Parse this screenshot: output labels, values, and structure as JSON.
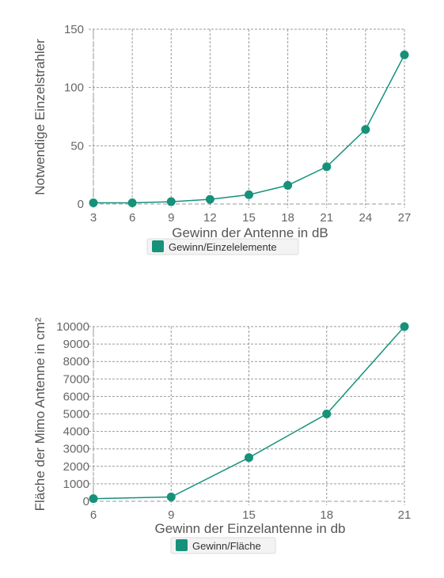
{
  "chart_data": [
    {
      "type": "line",
      "xlabel": "Gewinn der Antenne in dB",
      "ylabel": "Notwendige Einzelstrahler",
      "x": [
        3,
        6,
        9,
        12,
        15,
        18,
        21,
        24,
        27
      ],
      "xlim": [
        3,
        27
      ],
      "ylim": [
        0,
        150
      ],
      "y_ticks": [
        0,
        50,
        100,
        150
      ],
      "series": [
        {
          "name": "Gewinn/Einzelelemente",
          "values": [
            1,
            1,
            2,
            4,
            8,
            16,
            32,
            64,
            128
          ]
        }
      ],
      "grid": true,
      "legend": "bottom",
      "color": "#16917a"
    },
    {
      "type": "line",
      "xlabel": "Gewinn der Einzelantenne in db",
      "ylabel": "Fläche der Mimo Antenne in cm²",
      "x": [
        6,
        9,
        15,
        18,
        21
      ],
      "x_categorical": true,
      "ylim": [
        0,
        10000
      ],
      "y_ticks": [
        0,
        1000,
        2000,
        3000,
        4000,
        5000,
        6000,
        7000,
        8000,
        9000,
        10000
      ],
      "series": [
        {
          "name": "Gewinn/Fläche",
          "values": [
            150,
            250,
            2500,
            5000,
            10000
          ]
        }
      ],
      "grid": true,
      "legend": "bottom",
      "color": "#16917a"
    }
  ]
}
